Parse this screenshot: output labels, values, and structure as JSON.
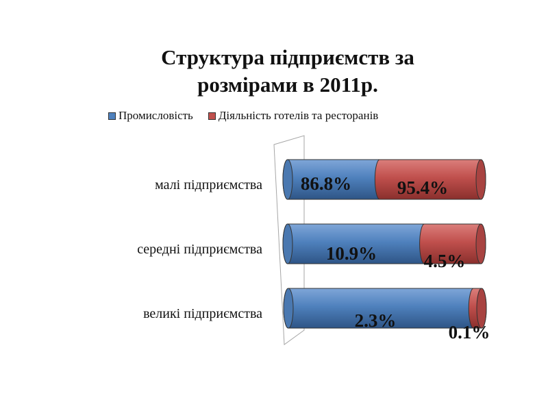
{
  "chart_data": {
    "type": "bar",
    "orientation": "horizontal",
    "stacked": "100%",
    "three_d": true,
    "title": [
      "Структура підприємств за",
      "розмірами в 2011р."
    ],
    "legend_position": "top",
    "categories": [
      "малі підприємства",
      "середні підприємства",
      "великі підприємства"
    ],
    "series": [
      {
        "name": "Промисловість",
        "color": "#4f81bd",
        "values": [
          86.8,
          10.9,
          2.3
        ],
        "labels": [
          "86.8%",
          "10.9%",
          "2.3%"
        ]
      },
      {
        "name": "Діяльність готелів та ресторанів",
        "color": "#c0504d",
        "values": [
          95.4,
          4.5,
          0.1
        ],
        "labels": [
          "95.4%",
          "4.5%",
          "0.1%"
        ]
      }
    ]
  }
}
